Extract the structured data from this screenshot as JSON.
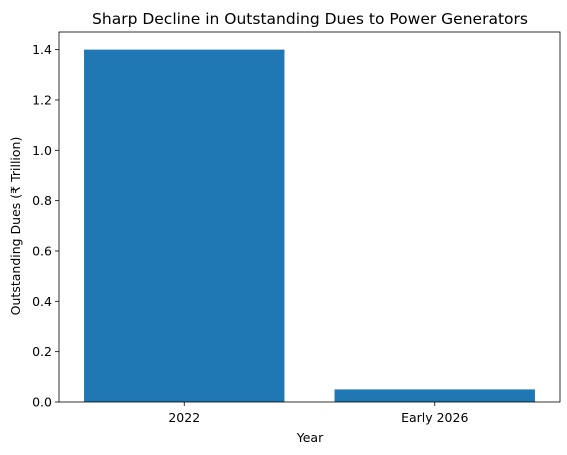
{
  "chart_data": {
    "type": "bar",
    "title": "Sharp Decline in Outstanding Dues to Power Generators",
    "xlabel": "Year",
    "ylabel": "Outstanding Dues (₹ Trillion)",
    "categories": [
      "2022",
      "Early 2026"
    ],
    "values": [
      1.4,
      0.05
    ],
    "ylim": [
      0,
      1.47
    ],
    "yticks": [
      0.0,
      0.2,
      0.4,
      0.6,
      0.8,
      1.0,
      1.2,
      1.4
    ],
    "ytick_labels": [
      "0.0",
      "0.2",
      "0.4",
      "0.6",
      "0.8",
      "1.0",
      "1.2",
      "1.4"
    ],
    "grid": false,
    "bar_color": "#1f77b4"
  }
}
